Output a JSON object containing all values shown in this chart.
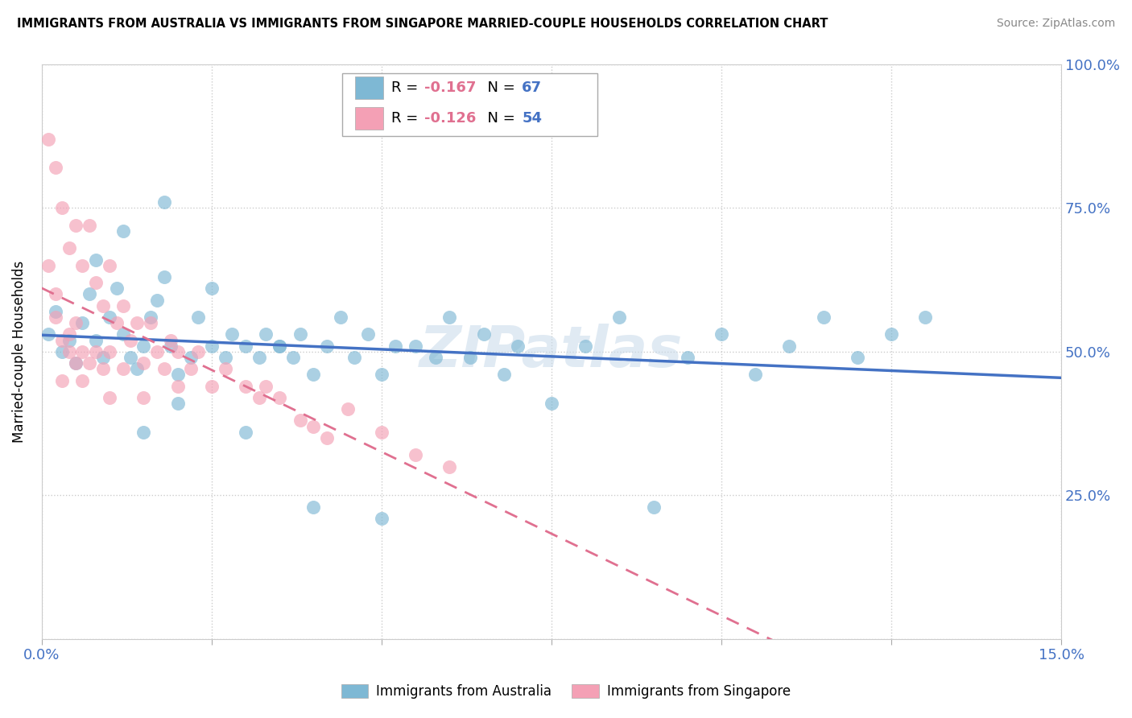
{
  "title": "IMMIGRANTS FROM AUSTRALIA VS IMMIGRANTS FROM SINGAPORE MARRIED-COUPLE HOUSEHOLDS CORRELATION CHART",
  "source": "Source: ZipAtlas.com",
  "ylabel": "Married-couple Households",
  "xlim": [
    0.0,
    0.15
  ],
  "ylim": [
    0.0,
    1.0
  ],
  "xtick_positions": [
    0.0,
    0.025,
    0.05,
    0.075,
    0.1,
    0.125,
    0.15
  ],
  "xtick_labels": [
    "0.0%",
    "",
    "",
    "",
    "",
    "",
    "15.0%"
  ],
  "ytick_positions": [
    0.0,
    0.25,
    0.5,
    0.75,
    1.0
  ],
  "ytick_labels": [
    "",
    "25.0%",
    "50.0%",
    "75.0%",
    "100.0%"
  ],
  "R_australia": -0.167,
  "N_australia": 67,
  "R_singapore": -0.126,
  "N_singapore": 54,
  "color_australia": "#7eb8d4",
  "color_singapore": "#f4a0b5",
  "trendline_australia_color": "#4472c4",
  "trendline_singapore_color": "#e07090",
  "aus_x": [
    0.001,
    0.002,
    0.003,
    0.004,
    0.005,
    0.006,
    0.007,
    0.008,
    0.009,
    0.01,
    0.011,
    0.012,
    0.013,
    0.014,
    0.015,
    0.016,
    0.017,
    0.018,
    0.019,
    0.02,
    0.022,
    0.023,
    0.025,
    0.027,
    0.028,
    0.03,
    0.032,
    0.033,
    0.035,
    0.037,
    0.038,
    0.04,
    0.042,
    0.044,
    0.046,
    0.048,
    0.05,
    0.052,
    0.055,
    0.058,
    0.06,
    0.063,
    0.065,
    0.068,
    0.07,
    0.075,
    0.08,
    0.085,
    0.09,
    0.095,
    0.1,
    0.105,
    0.11,
    0.115,
    0.12,
    0.125,
    0.13,
    0.008,
    0.012,
    0.018,
    0.025,
    0.03,
    0.02,
    0.015,
    0.035,
    0.04,
    0.05
  ],
  "aus_y": [
    0.53,
    0.57,
    0.5,
    0.52,
    0.48,
    0.55,
    0.6,
    0.52,
    0.49,
    0.56,
    0.61,
    0.53,
    0.49,
    0.47,
    0.51,
    0.56,
    0.59,
    0.63,
    0.51,
    0.46,
    0.49,
    0.56,
    0.61,
    0.49,
    0.53,
    0.51,
    0.49,
    0.53,
    0.51,
    0.49,
    0.53,
    0.46,
    0.51,
    0.56,
    0.49,
    0.53,
    0.46,
    0.51,
    0.51,
    0.49,
    0.56,
    0.49,
    0.53,
    0.46,
    0.51,
    0.41,
    0.51,
    0.56,
    0.23,
    0.49,
    0.53,
    0.46,
    0.51,
    0.56,
    0.49,
    0.53,
    0.56,
    0.66,
    0.71,
    0.76,
    0.51,
    0.36,
    0.41,
    0.36,
    0.51,
    0.23,
    0.21
  ],
  "sin_x": [
    0.001,
    0.001,
    0.002,
    0.002,
    0.003,
    0.003,
    0.003,
    0.004,
    0.004,
    0.005,
    0.005,
    0.005,
    0.006,
    0.006,
    0.007,
    0.007,
    0.008,
    0.008,
    0.009,
    0.009,
    0.01,
    0.01,
    0.011,
    0.012,
    0.012,
    0.013,
    0.014,
    0.015,
    0.015,
    0.016,
    0.017,
    0.018,
    0.019,
    0.02,
    0.02,
    0.022,
    0.023,
    0.025,
    0.027,
    0.03,
    0.032,
    0.033,
    0.035,
    0.038,
    0.04,
    0.042,
    0.045,
    0.05,
    0.055,
    0.06,
    0.002,
    0.004,
    0.006,
    0.01
  ],
  "sin_y": [
    0.87,
    0.65,
    0.82,
    0.56,
    0.75,
    0.52,
    0.45,
    0.68,
    0.5,
    0.72,
    0.55,
    0.48,
    0.65,
    0.5,
    0.72,
    0.48,
    0.62,
    0.5,
    0.58,
    0.47,
    0.65,
    0.5,
    0.55,
    0.58,
    0.47,
    0.52,
    0.55,
    0.48,
    0.42,
    0.55,
    0.5,
    0.47,
    0.52,
    0.5,
    0.44,
    0.47,
    0.5,
    0.44,
    0.47,
    0.44,
    0.42,
    0.44,
    0.42,
    0.38,
    0.37,
    0.35,
    0.4,
    0.36,
    0.32,
    0.3,
    0.6,
    0.53,
    0.45,
    0.42
  ],
  "watermark": "ZIPatlas",
  "legend_R_color": "#e07090",
  "legend_N_color": "#4472c4"
}
